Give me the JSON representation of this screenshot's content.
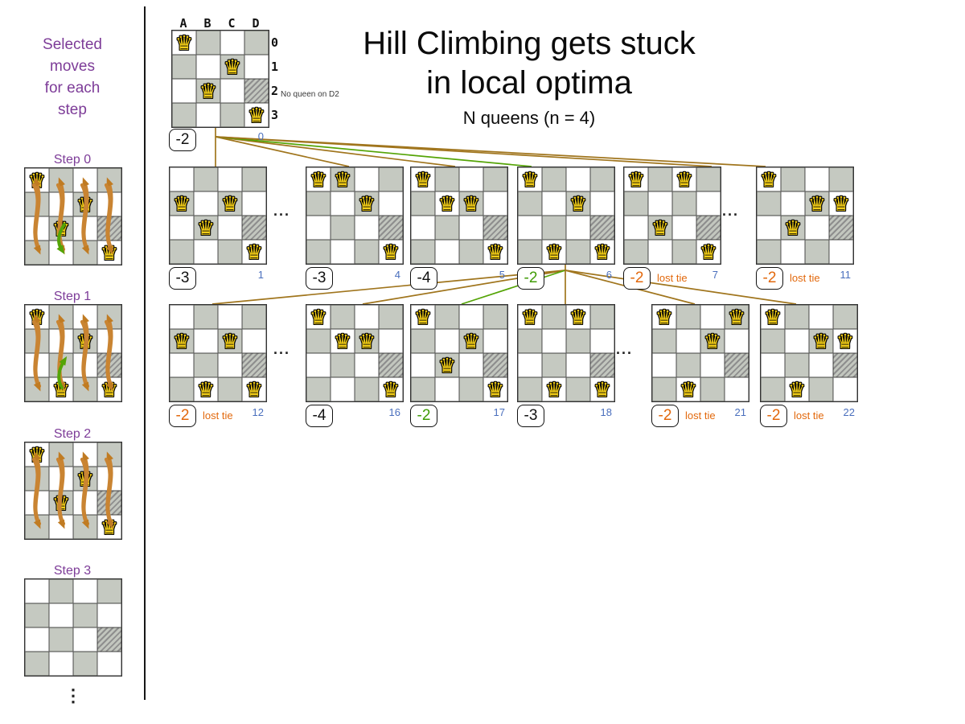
{
  "title": {
    "line1": "Hill Climbing gets stuck",
    "line2": "in local optima",
    "subtitle": "N queens (n = 4)"
  },
  "sidebar": {
    "heading_lines": [
      "Selected",
      "moves",
      "for each",
      "step"
    ],
    "steps": [
      {
        "label": "Step 0",
        "queens": [
          "A0",
          "C1",
          "B2",
          "D3"
        ],
        "arrows": true,
        "green_arrow": "down"
      },
      {
        "label": "Step 1",
        "queens": [
          "A0",
          "C1",
          "B3",
          "D3"
        ],
        "arrows": true,
        "green_arrow": "up"
      },
      {
        "label": "Step 2",
        "queens": [
          "A0",
          "C1",
          "B2",
          "D3"
        ],
        "arrows": true,
        "green_arrow": null
      },
      {
        "label": "Step 3",
        "queens": [],
        "arrows": false,
        "green_arrow": null
      }
    ],
    "more_indicator": "⋮"
  },
  "root_board": {
    "column_labels": [
      "A",
      "B",
      "C",
      "D"
    ],
    "row_labels": [
      "0",
      "1",
      "2",
      "3"
    ],
    "queens": [
      "A0",
      "C1",
      "B2",
      "D3"
    ],
    "no_queen_note": "No queen on D2",
    "score": "-2",
    "score_style": "black",
    "index": "0"
  },
  "board_rows": [
    {
      "boards": [
        {
          "queens": [
            "A1",
            "C1",
            "B2",
            "D3"
          ],
          "score": "-3",
          "score_style": "black",
          "tag": null,
          "index": "1",
          "link": "brown"
        },
        {
          "queens": [
            "A0",
            "B0",
            "C1",
            "D3"
          ],
          "score": "-3",
          "score_style": "black",
          "tag": null,
          "index": "4",
          "link": "brown"
        },
        {
          "queens": [
            "A0",
            "B1",
            "C1",
            "D3"
          ],
          "score": "-4",
          "score_style": "black",
          "tag": null,
          "index": "5",
          "link": "brown"
        },
        {
          "queens": [
            "A0",
            "C1",
            "B3",
            "D3"
          ],
          "score": "-2",
          "score_style": "green",
          "tag": null,
          "index": "6",
          "link": "green"
        },
        {
          "queens": [
            "A0",
            "C0",
            "B2",
            "D3"
          ],
          "score": "-2",
          "score_style": "orange",
          "tag": "lost tie",
          "index": "7",
          "link": "brown"
        },
        {
          "queens": [
            "A0",
            "C1",
            "D1",
            "B2"
          ],
          "score": "-2",
          "score_style": "orange",
          "tag": "lost tie",
          "index": "11",
          "link": "brown"
        }
      ]
    },
    {
      "boards": [
        {
          "queens": [
            "A1",
            "C1",
            "B3",
            "D3"
          ],
          "score": "-2",
          "score_style": "orange",
          "tag": "lost tie",
          "index": "12",
          "link": "brown"
        },
        {
          "queens": [
            "A0",
            "B1",
            "C1",
            "D3"
          ],
          "score": "-4",
          "score_style": "black",
          "tag": null,
          "index": "16",
          "link": "brown"
        },
        {
          "queens": [
            "A0",
            "C1",
            "B2",
            "D3"
          ],
          "score": "-2",
          "score_style": "green",
          "tag": null,
          "index": "17",
          "link": "green"
        },
        {
          "queens": [
            "A0",
            "C0",
            "B3",
            "D3"
          ],
          "score": "-3",
          "score_style": "black",
          "tag": null,
          "index": "18",
          "link": "brown"
        },
        {
          "queens": [
            "A0",
            "D0",
            "C1",
            "B3"
          ],
          "score": "-2",
          "score_style": "orange",
          "tag": "lost tie",
          "index": "21",
          "link": "brown"
        },
        {
          "queens": [
            "A0",
            "C1",
            "D1",
            "B3"
          ],
          "score": "-2",
          "score_style": "orange",
          "tag": "lost tie",
          "index": "22",
          "link": "brown"
        }
      ]
    }
  ],
  "ellipsis": "...",
  "hatched_cell": "D2",
  "queen_glyph": "♛",
  "colors": {
    "purple": "#7d3c98",
    "score_green": "#3f9b05",
    "score_orange": "#e2680c",
    "index_blue": "#4a6fbd",
    "line_brown": "#a0751d",
    "line_green": "#54a406",
    "cell_gray": "#c5c9c1",
    "queen_gold": "#f2cd17"
  }
}
